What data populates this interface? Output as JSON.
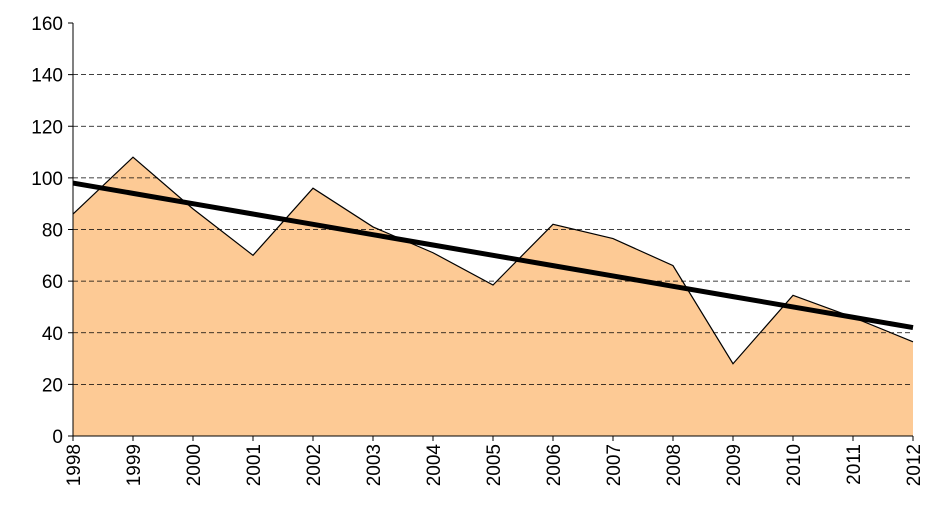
{
  "chart_data": {
    "type": "area",
    "categories": [
      "1998",
      "1999",
      "2000",
      "2001",
      "2002",
      "2003",
      "2004",
      "2005",
      "2006",
      "2007",
      "2008",
      "2009",
      "2010",
      "2011",
      "2012"
    ],
    "series": [
      {
        "type": "area",
        "color": "#fdca95",
        "values": [
          86,
          108,
          88,
          70,
          96,
          81,
          71,
          58.5,
          82,
          76.5,
          66,
          28,
          54.5,
          46,
          36.5
        ]
      },
      {
        "type": "line",
        "color": "#000000",
        "values": [
          98,
          94,
          90,
          86,
          82,
          78,
          74,
          70,
          66,
          62,
          58,
          54,
          50,
          46,
          42
        ]
      }
    ],
    "ylim": [
      0,
      160
    ],
    "yticks": [
      0,
      20,
      40,
      60,
      80,
      100,
      120,
      140,
      160
    ],
    "grid": true
  }
}
